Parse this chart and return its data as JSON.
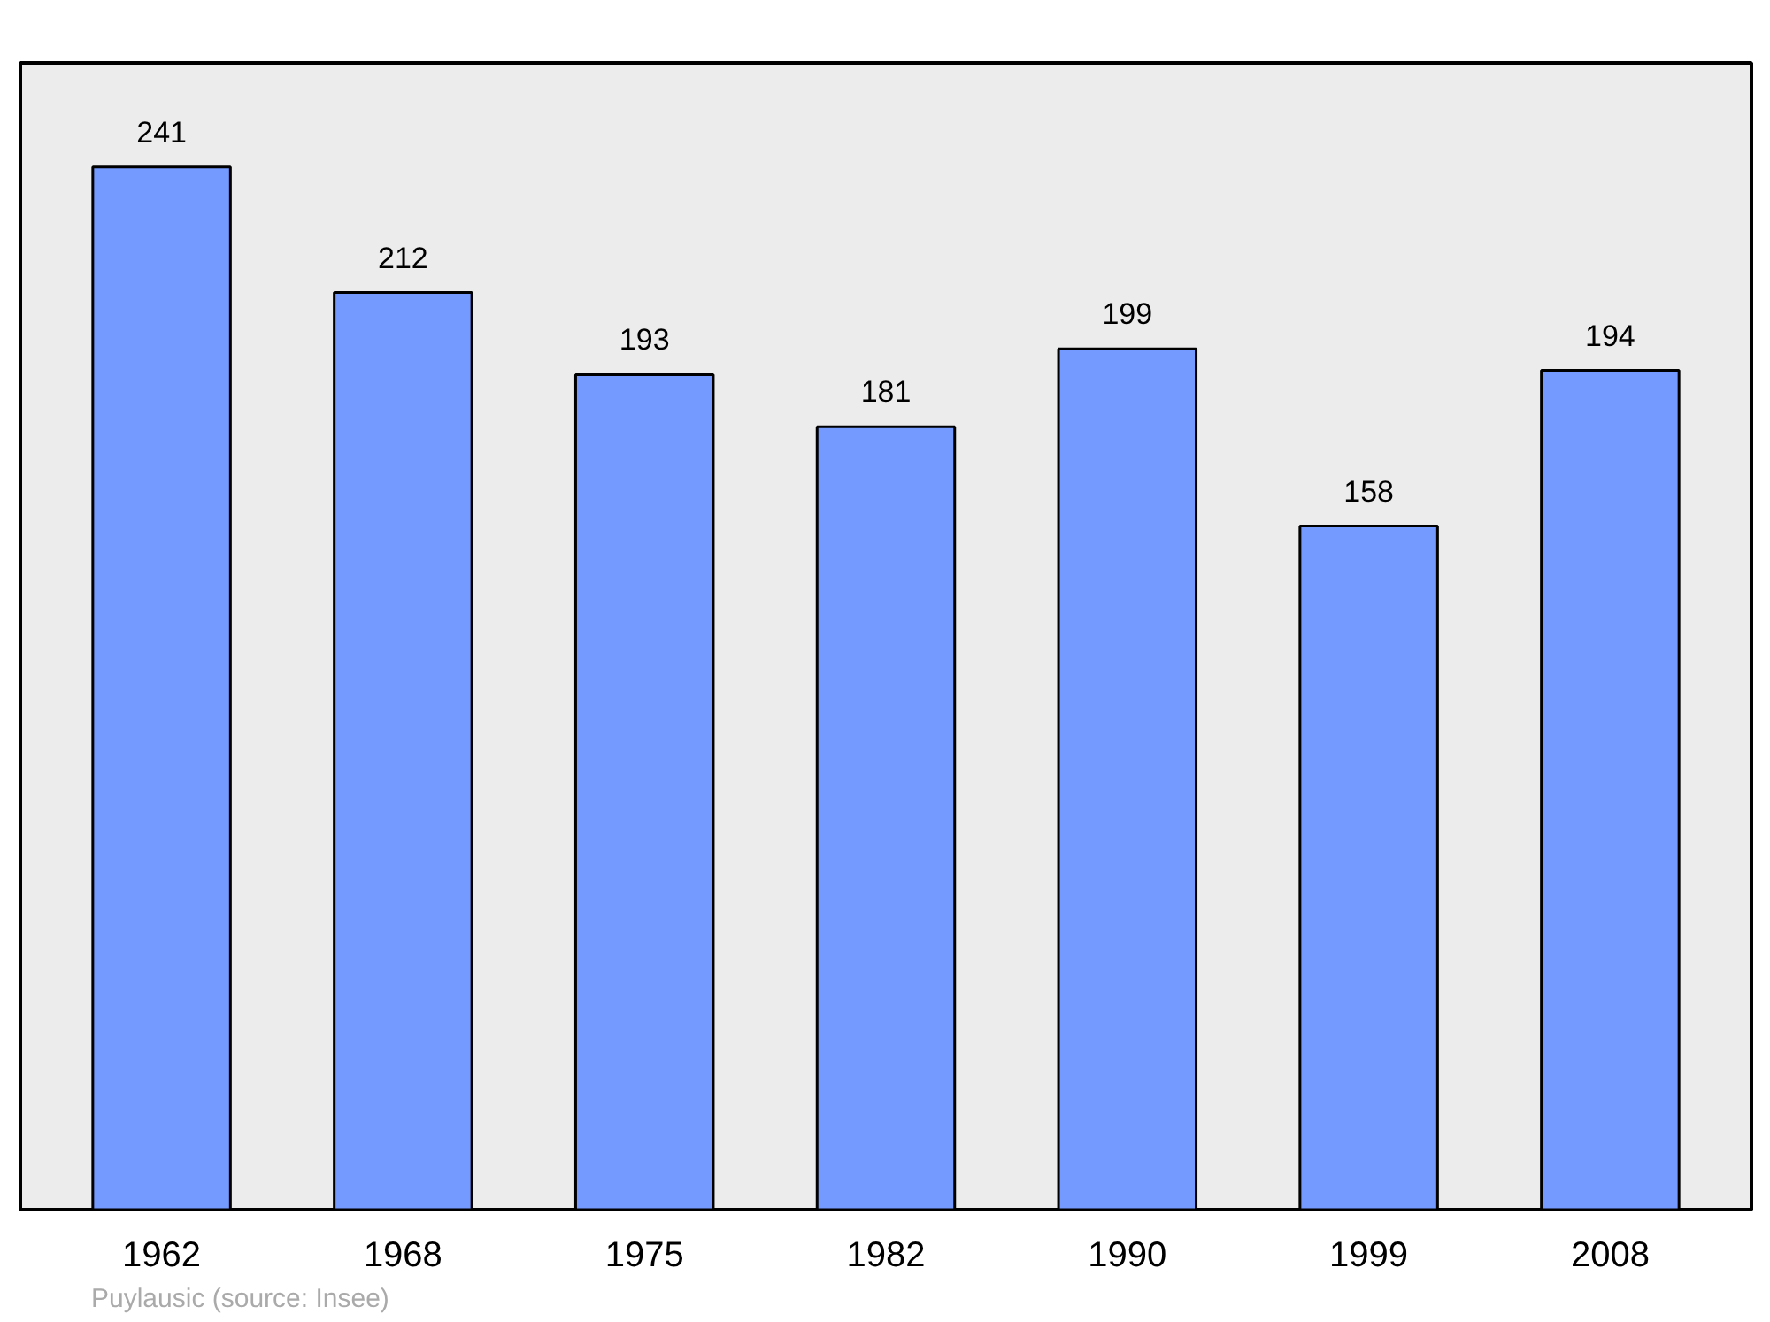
{
  "chart_data": {
    "type": "bar",
    "categories": [
      "1962",
      "1968",
      "1975",
      "1982",
      "1990",
      "1999",
      "2008"
    ],
    "values": [
      241,
      212,
      193,
      181,
      199,
      158,
      194
    ],
    "color": "#7499ff",
    "tick_labels": "x",
    "data_labels": true,
    "grid": false,
    "annotations": [
      "Puylausic    (source: Insee)"
    ]
  }
}
